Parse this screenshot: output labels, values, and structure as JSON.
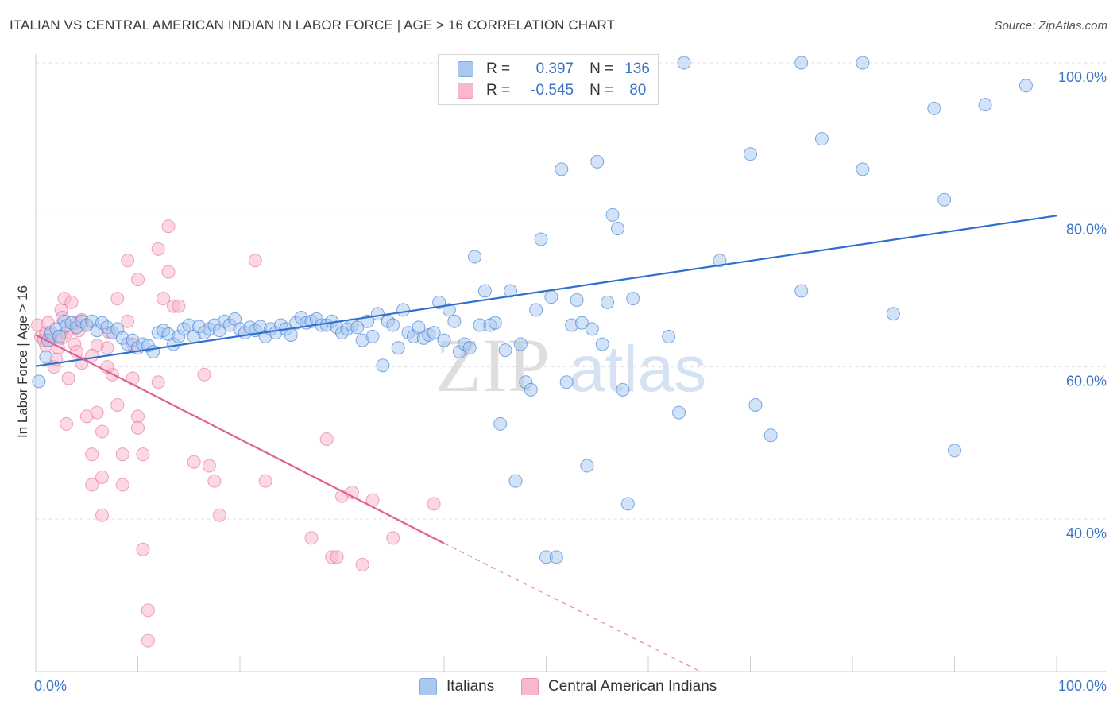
{
  "title": "ITALIAN VS CENTRAL AMERICAN INDIAN IN LABOR FORCE | AGE > 16 CORRELATION CHART",
  "source": "Source: ZipAtlas.com",
  "watermark": {
    "part1": "ZIP",
    "part2": "atlas"
  },
  "legend": {
    "rows": [
      {
        "r_label": "R =",
        "r_value": "0.397",
        "n_label": "N =",
        "n_value": "136",
        "color": "#a8c8f0"
      },
      {
        "r_label": "R =",
        "r_value": "-0.545",
        "n_label": "N =",
        "n_value": "80",
        "color": "#f8b8cc"
      }
    ]
  },
  "bottom_legend": [
    "Italians",
    "Central American Indians"
  ],
  "chart_data": {
    "type": "scatter",
    "ylabel": "In Labor Force | Age > 16",
    "xlim": [
      0,
      100
    ],
    "ylim": [
      20,
      101
    ],
    "x_tick_labels": [
      "0.0%",
      "100.0%"
    ],
    "y_tick_labels": [
      "40.0%",
      "60.0%",
      "80.0%",
      "100.0%"
    ],
    "y_ticks": [
      40,
      60,
      80,
      100
    ],
    "grid": true,
    "colors": {
      "italians": "#4a86d8",
      "italians_fill": "#a8c8f0",
      "cai": "#e66b97",
      "cai_fill": "#f8b8cc",
      "axis_text": "#3b73c8"
    },
    "series": [
      {
        "name": "Italians",
        "trend": {
          "x0": 0,
          "y0": 60.1,
          "x1": 100,
          "y1": 79.9
        },
        "points": [
          [
            0.3,
            58.1
          ],
          [
            1.0,
            61.3
          ],
          [
            1.2,
            63.5
          ],
          [
            1.5,
            64.5
          ],
          [
            2.0,
            65.0
          ],
          [
            2.3,
            64.0
          ],
          [
            2.8,
            66.0
          ],
          [
            3.0,
            65.4
          ],
          [
            3.5,
            65.8
          ],
          [
            4.0,
            65.2
          ],
          [
            4.5,
            66.0
          ],
          [
            5.0,
            65.5
          ],
          [
            5.5,
            66.0
          ],
          [
            6.0,
            64.8
          ],
          [
            6.5,
            65.8
          ],
          [
            7.0,
            65.2
          ],
          [
            7.5,
            64.5
          ],
          [
            8.0,
            65.0
          ],
          [
            8.5,
            63.8
          ],
          [
            9.0,
            63.0
          ],
          [
            9.5,
            63.5
          ],
          [
            10.0,
            62.5
          ],
          [
            10.5,
            63.0
          ],
          [
            11.0,
            62.8
          ],
          [
            11.5,
            62.0
          ],
          [
            12.0,
            64.5
          ],
          [
            12.5,
            64.8
          ],
          [
            13.0,
            64.3
          ],
          [
            13.5,
            63.0
          ],
          [
            14.0,
            64.0
          ],
          [
            14.5,
            65.0
          ],
          [
            15.0,
            65.5
          ],
          [
            15.5,
            64.0
          ],
          [
            16.0,
            65.3
          ],
          [
            16.5,
            64.5
          ],
          [
            17.0,
            65.0
          ],
          [
            17.5,
            65.5
          ],
          [
            18.0,
            64.8
          ],
          [
            18.5,
            66.0
          ],
          [
            19.0,
            65.5
          ],
          [
            19.5,
            66.3
          ],
          [
            20.0,
            65.0
          ],
          [
            20.5,
            64.5
          ],
          [
            21.0,
            65.2
          ],
          [
            21.5,
            64.8
          ],
          [
            22.0,
            65.3
          ],
          [
            22.5,
            64.0
          ],
          [
            23.0,
            65.0
          ],
          [
            23.5,
            64.5
          ],
          [
            24.0,
            65.5
          ],
          [
            24.5,
            65.0
          ],
          [
            25.0,
            64.2
          ],
          [
            25.5,
            65.8
          ],
          [
            26.0,
            66.5
          ],
          [
            26.5,
            65.8
          ],
          [
            27.0,
            66.0
          ],
          [
            27.5,
            66.3
          ],
          [
            28.0,
            65.5
          ],
          [
            28.5,
            65.5
          ],
          [
            29.0,
            66.0
          ],
          [
            29.5,
            65.2
          ],
          [
            30.0,
            64.5
          ],
          [
            30.5,
            65.0
          ],
          [
            31.0,
            65.5
          ],
          [
            31.5,
            65.2
          ],
          [
            32.0,
            63.5
          ],
          [
            32.5,
            66.0
          ],
          [
            33.0,
            64.0
          ],
          [
            33.5,
            67.0
          ],
          [
            34.0,
            60.2
          ],
          [
            34.5,
            66.0
          ],
          [
            35.0,
            65.5
          ],
          [
            35.5,
            62.5
          ],
          [
            36.0,
            67.5
          ],
          [
            36.5,
            64.5
          ],
          [
            37.0,
            64.0
          ],
          [
            37.5,
            65.2
          ],
          [
            38.0,
            63.8
          ],
          [
            38.5,
            64.2
          ],
          [
            39.0,
            64.5
          ],
          [
            39.5,
            68.5
          ],
          [
            40.0,
            63.5
          ],
          [
            40.5,
            67.5
          ],
          [
            41.0,
            66.0
          ],
          [
            41.5,
            62.0
          ],
          [
            42.0,
            63.0
          ],
          [
            42.5,
            62.5
          ],
          [
            43.0,
            74.5
          ],
          [
            43.5,
            65.5
          ],
          [
            44.0,
            70.0
          ],
          [
            44.5,
            65.5
          ],
          [
            45.0,
            65.8
          ],
          [
            45.5,
            52.5
          ],
          [
            46.0,
            62.2
          ],
          [
            46.5,
            70.0
          ],
          [
            47.0,
            45.0
          ],
          [
            47.5,
            63.0
          ],
          [
            48.0,
            58.0
          ],
          [
            48.5,
            57.0
          ],
          [
            49.0,
            67.5
          ],
          [
            49.5,
            76.8
          ],
          [
            50.0,
            35.0
          ],
          [
            50.5,
            69.2
          ],
          [
            51.0,
            35.0
          ],
          [
            51.5,
            86.0
          ],
          [
            52.0,
            58.0
          ],
          [
            52.5,
            65.5
          ],
          [
            53.0,
            68.8
          ],
          [
            53.5,
            65.8
          ],
          [
            54.0,
            47.0
          ],
          [
            54.5,
            65.0
          ],
          [
            55.0,
            87.0
          ],
          [
            55.5,
            63.0
          ],
          [
            56.0,
            68.5
          ],
          [
            56.5,
            80.0
          ],
          [
            57.0,
            78.2
          ],
          [
            57.5,
            57.0
          ],
          [
            58.0,
            42.0
          ],
          [
            58.5,
            69.0
          ],
          [
            62.0,
            64.0
          ],
          [
            63.0,
            54.0
          ],
          [
            67.0,
            74.0
          ],
          [
            70.0,
            88.0
          ],
          [
            70.5,
            55.0
          ],
          [
            72.0,
            51.0
          ],
          [
            75.0,
            70.0
          ],
          [
            77.0,
            90.0
          ],
          [
            81.0,
            86.0
          ],
          [
            84.0,
            67.0
          ],
          [
            88.0,
            94.0
          ],
          [
            89.0,
            82.0
          ],
          [
            90.0,
            49.0
          ],
          [
            93.0,
            94.5
          ],
          [
            97.0,
            97.0
          ],
          [
            49.0,
            100.0
          ],
          [
            51.0,
            100.0
          ],
          [
            55.5,
            100.0
          ],
          [
            60.0,
            100.0
          ],
          [
            63.5,
            100.0
          ],
          [
            75.0,
            100.0
          ],
          [
            81.0,
            100.0
          ]
        ]
      },
      {
        "name": "Central American Indians",
        "trend": {
          "x0": 0,
          "y0": 64.2,
          "x1": 40,
          "y1": 36.8,
          "dash_x1": 65,
          "dash_y1": 20.0
        },
        "points": [
          [
            0.2,
            65.5
          ],
          [
            0.5,
            64.0
          ],
          [
            0.8,
            63.5
          ],
          [
            1.0,
            64.5
          ],
          [
            1.5,
            63.5
          ],
          [
            2.0,
            64.0
          ],
          [
            2.5,
            63.8
          ],
          [
            3.0,
            64.5
          ],
          [
            3.5,
            65.0
          ],
          [
            4.0,
            65.8
          ],
          [
            4.5,
            66.2
          ],
          [
            5.0,
            65.5
          ],
          [
            1.8,
            60.0
          ],
          [
            2.5,
            67.5
          ],
          [
            2.8,
            69.0
          ],
          [
            3.5,
            68.5
          ],
          [
            3.2,
            58.5
          ],
          [
            3.0,
            52.5
          ],
          [
            4.5,
            60.5
          ],
          [
            5.0,
            53.5
          ],
          [
            5.5,
            48.5
          ],
          [
            5.5,
            44.5
          ],
          [
            6.0,
            54.0
          ],
          [
            6.5,
            51.5
          ],
          [
            6.5,
            45.5
          ],
          [
            6.5,
            40.5
          ],
          [
            7.0,
            62.5
          ],
          [
            7.5,
            59.0
          ],
          [
            8.0,
            55.0
          ],
          [
            8.0,
            69.0
          ],
          [
            8.5,
            48.5
          ],
          [
            8.5,
            44.5
          ],
          [
            9.0,
            66.0
          ],
          [
            9.0,
            74.0
          ],
          [
            9.5,
            63.0
          ],
          [
            9.5,
            58.5
          ],
          [
            10.0,
            71.5
          ],
          [
            10.0,
            53.5
          ],
          [
            10.0,
            52.0
          ],
          [
            10.5,
            48.5
          ],
          [
            10.5,
            36.0
          ],
          [
            11.0,
            28.0
          ],
          [
            11.0,
            24.0
          ],
          [
            12.0,
            75.5
          ],
          [
            12.0,
            58.0
          ],
          [
            12.5,
            69.0
          ],
          [
            13.0,
            72.5
          ],
          [
            13.0,
            78.5
          ],
          [
            13.5,
            68.0
          ],
          [
            14.0,
            68.0
          ],
          [
            15.5,
            47.5
          ],
          [
            16.5,
            59.0
          ],
          [
            17.0,
            47.0
          ],
          [
            17.5,
            45.0
          ],
          [
            18.0,
            40.5
          ],
          [
            21.5,
            74.0
          ],
          [
            22.5,
            45.0
          ],
          [
            27.0,
            37.5
          ],
          [
            28.5,
            50.5
          ],
          [
            29.0,
            35.0
          ],
          [
            29.5,
            35.0
          ],
          [
            30.0,
            43.0
          ],
          [
            31.0,
            43.5
          ],
          [
            32.0,
            34.0
          ],
          [
            33.0,
            42.5
          ],
          [
            35.0,
            37.5
          ],
          [
            39.0,
            42.0
          ],
          [
            1.0,
            62.8
          ],
          [
            1.5,
            64.2
          ],
          [
            2.2,
            62.5
          ],
          [
            3.8,
            63.0
          ],
          [
            4.2,
            64.8
          ],
          [
            6.0,
            62.8
          ],
          [
            7.2,
            64.5
          ],
          [
            2.0,
            61.0
          ],
          [
            5.5,
            61.5
          ],
          [
            7.0,
            60.0
          ],
          [
            1.2,
            65.8
          ],
          [
            2.6,
            66.5
          ],
          [
            4.0,
            62.0
          ]
        ]
      }
    ]
  }
}
